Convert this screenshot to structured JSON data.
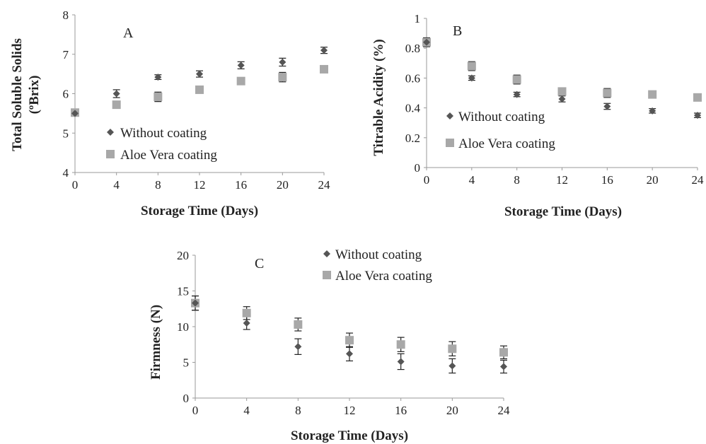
{
  "chart_data": [
    {
      "type": "scatter",
      "panel_label": "A",
      "title": "",
      "xlabel": "Storage Time  (Days)",
      "ylabel_lines": [
        "Total Soluble Solids",
        "(ºBrix)"
      ],
      "x": [
        0,
        4,
        8,
        12,
        16,
        20,
        24
      ],
      "xticks": [
        "0",
        "4",
        "8",
        "12",
        "16",
        "20",
        "24"
      ],
      "xlim": [
        0,
        24
      ],
      "yticks": [
        "4",
        "5",
        "6",
        "7",
        "8"
      ],
      "ylim": [
        4,
        8
      ],
      "grid": false,
      "legend_position": "lower-left",
      "series": [
        {
          "name": "Without coating",
          "marker": "diamond",
          "color": "#555555",
          "values": [
            5.5,
            6.0,
            6.42,
            6.5,
            6.72,
            6.8,
            7.1
          ],
          "errors": [
            0.07,
            0.1,
            0.06,
            0.08,
            0.09,
            0.1,
            0.08
          ]
        },
        {
          "name": "Aloe Vera coating",
          "marker": "square",
          "color": "#a8a8a8",
          "values": [
            5.52,
            5.72,
            5.92,
            6.1,
            6.32,
            6.42,
            6.62
          ],
          "errors": [
            0.06,
            0.08,
            0.12,
            0.08,
            0.06,
            0.12,
            0.05
          ]
        }
      ]
    },
    {
      "type": "scatter",
      "panel_label": "B",
      "title": "",
      "xlabel": "Storage Time  (Days)",
      "ylabel_lines": [
        "Titrable Acidity (%)"
      ],
      "x": [
        0,
        4,
        8,
        12,
        16,
        20,
        24
      ],
      "xticks": [
        "0",
        "4",
        "8",
        "12",
        "16",
        "20",
        "24"
      ],
      "xlim": [
        0,
        24
      ],
      "yticks": [
        "0",
        "0.2",
        "0.4",
        "0.6",
        "0.8",
        "1"
      ],
      "ylim": [
        0,
        1
      ],
      "grid": false,
      "legend_position": "lower-left",
      "series": [
        {
          "name": "Without coating",
          "marker": "diamond",
          "color": "#555555",
          "values": [
            0.84,
            0.6,
            0.49,
            0.46,
            0.41,
            0.38,
            0.35
          ],
          "errors": [
            0.02,
            0.015,
            0.015,
            0.02,
            0.02,
            0.015,
            0.015
          ]
        },
        {
          "name": "Aloe Vera coating",
          "marker": "square",
          "color": "#a8a8a8",
          "values": [
            0.84,
            0.68,
            0.59,
            0.51,
            0.5,
            0.49,
            0.47
          ],
          "errors": [
            0.03,
            0.03,
            0.03,
            0.02,
            0.03,
            0.02,
            0.02
          ]
        }
      ]
    },
    {
      "type": "scatter",
      "panel_label": "C",
      "title": "",
      "xlabel": "Storage Time  (Days)",
      "ylabel_lines": [
        "Firmness (N)"
      ],
      "x": [
        0,
        4,
        8,
        12,
        16,
        20,
        24
      ],
      "xticks": [
        "0",
        "4",
        "8",
        "12",
        "16",
        "20",
        "24"
      ],
      "xlim": [
        0,
        24
      ],
      "yticks": [
        "0",
        "5",
        "10",
        "15",
        "20"
      ],
      "ylim": [
        0,
        20
      ],
      "grid": false,
      "legend_position": "top-center",
      "series": [
        {
          "name": "Without coating",
          "marker": "diamond",
          "color": "#555555",
          "values": [
            13.3,
            10.5,
            7.2,
            6.2,
            5.1,
            4.5,
            4.4
          ],
          "errors": [
            1.0,
            0.9,
            1.1,
            1.0,
            1.1,
            1.0,
            0.9
          ]
        },
        {
          "name": "Aloe Vera coating",
          "marker": "square",
          "color": "#a8a8a8",
          "values": [
            13.3,
            11.9,
            10.3,
            8.1,
            7.5,
            6.9,
            6.4
          ],
          "errors": [
            1.0,
            0.9,
            0.9,
            1.0,
            1.0,
            1.0,
            0.9
          ]
        }
      ]
    }
  ]
}
